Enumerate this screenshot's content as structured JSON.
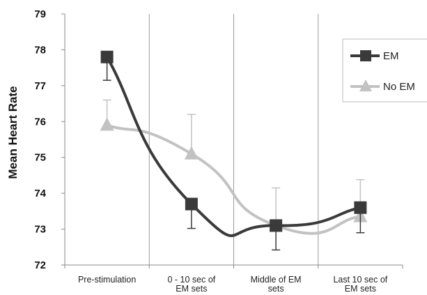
{
  "chart_data": {
    "type": "line",
    "ylabel": "Mean Heart Rate",
    "xlabel": "",
    "title": "",
    "ylim": [
      72,
      79
    ],
    "yticks": [
      72,
      73,
      74,
      75,
      76,
      77,
      78,
      79
    ],
    "categories": [
      [
        "Pre-stimulation"
      ],
      [
        "0 - 10 sec of",
        "EM sets"
      ],
      [
        "Middle of EM",
        "sets"
      ],
      [
        "Last 10 sec of",
        "EM sets"
      ]
    ],
    "series": [
      {
        "name": "EM",
        "color": "#3a3a3a",
        "marker": "square",
        "values": [
          77.8,
          73.7,
          73.1,
          73.6
        ],
        "error_low": [
          77.15,
          73.02,
          72.42,
          72.9
        ],
        "error_high": [
          77.8,
          73.7,
          73.1,
          73.6
        ]
      },
      {
        "name": "No EM",
        "color": "#c2c2c2",
        "marker": "triangle",
        "values": [
          75.9,
          75.1,
          73.1,
          73.35
        ],
        "error_low": [
          75.9,
          75.1,
          73.1,
          73.35
        ],
        "error_high": [
          76.6,
          76.2,
          74.15,
          74.38
        ]
      }
    ],
    "grid": "vertical-category-separators",
    "legend_position": "right"
  }
}
